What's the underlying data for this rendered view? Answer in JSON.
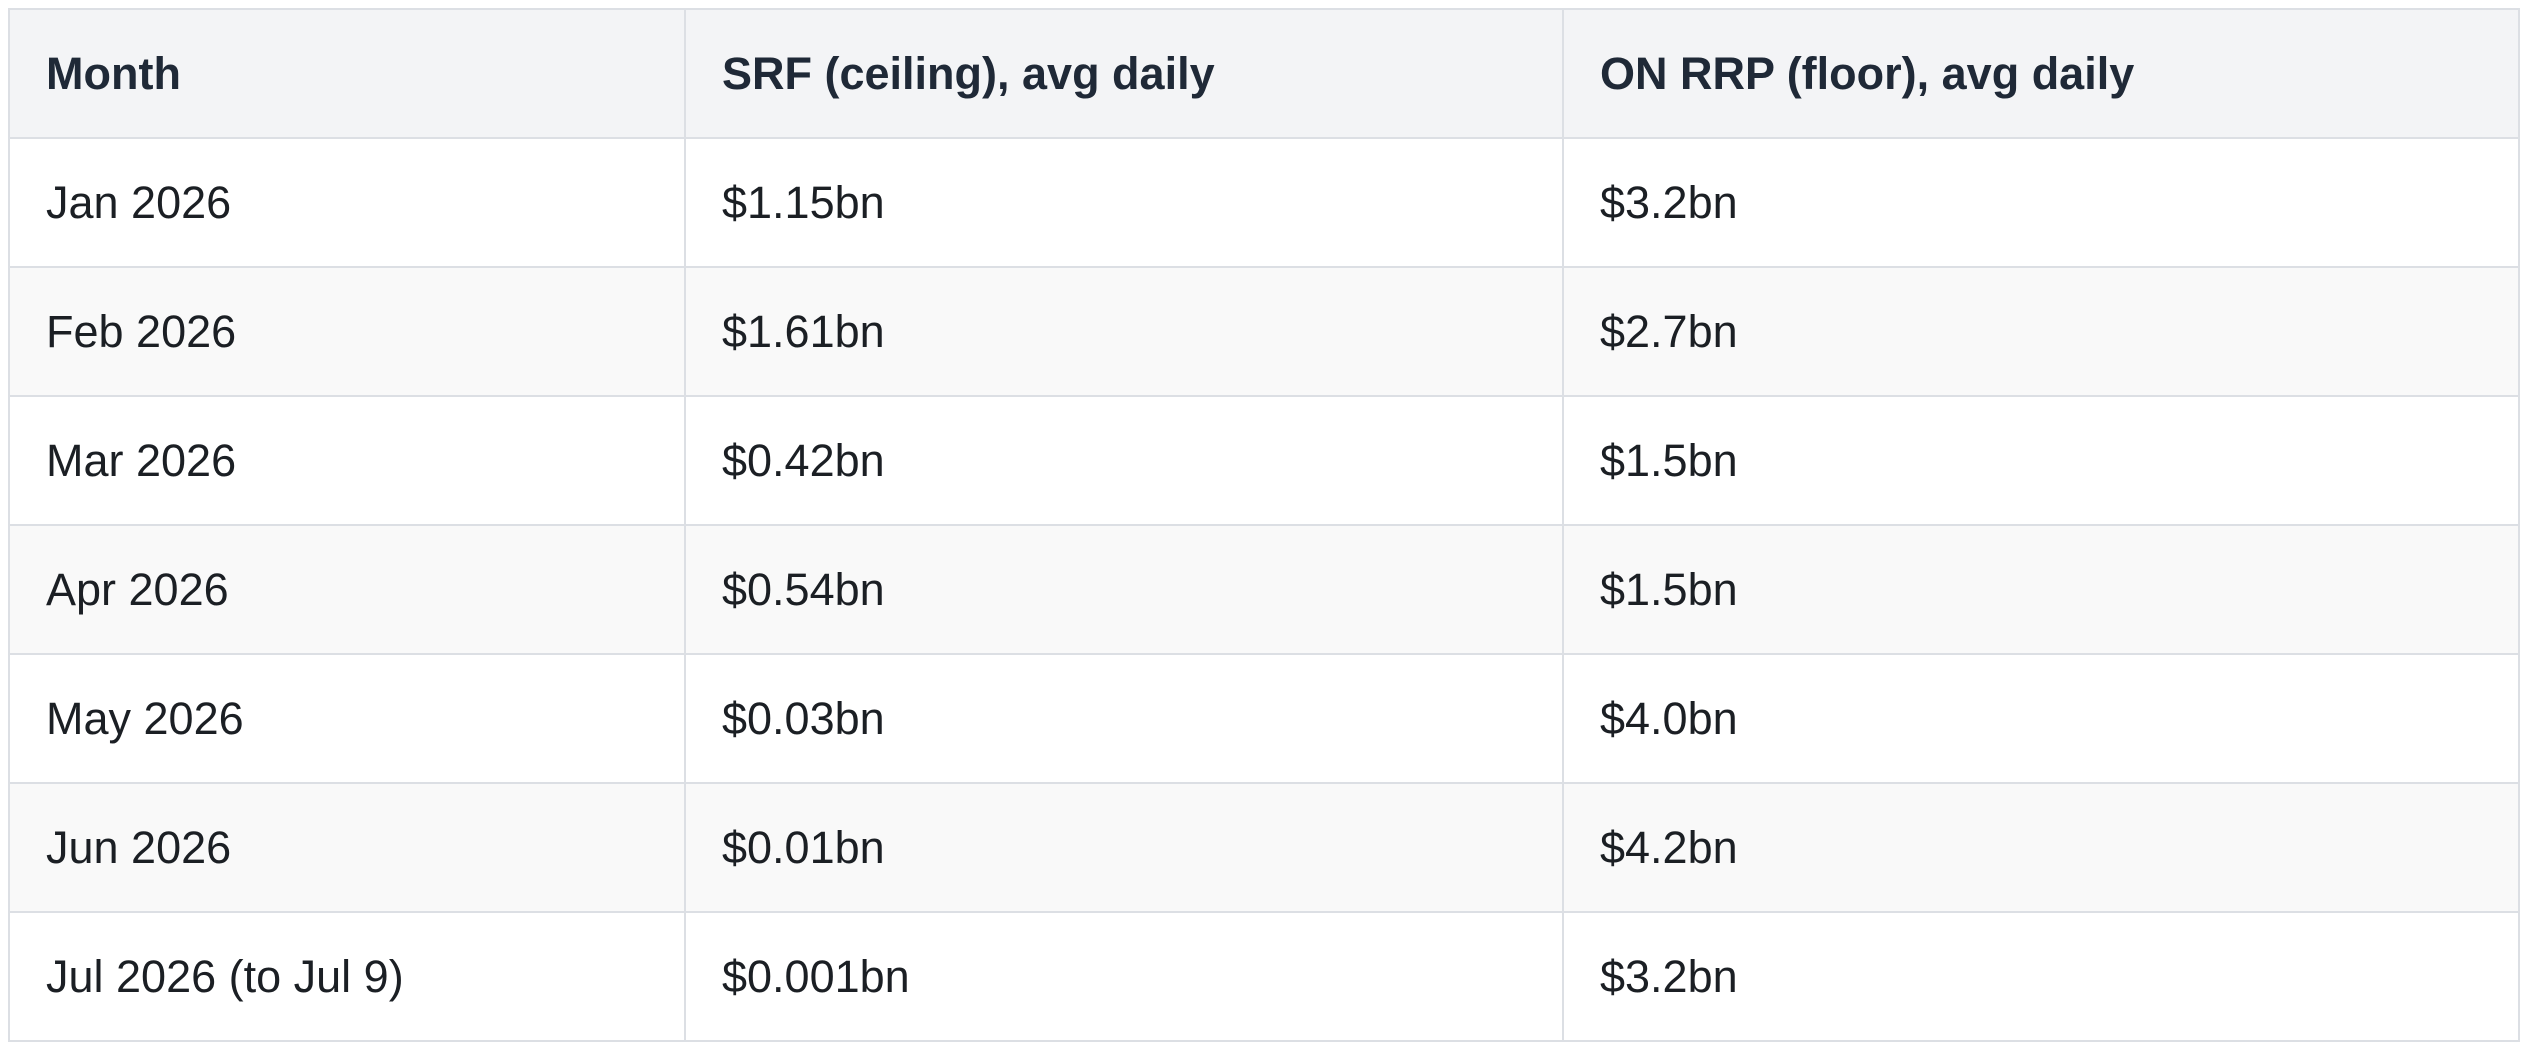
{
  "table": {
    "headers": [
      "Month",
      "SRF (ceiling), avg daily",
      "ON RRP (floor), avg daily"
    ],
    "rows": [
      [
        "Jan 2026",
        "$1.15bn",
        "$3.2bn"
      ],
      [
        "Feb 2026",
        "$1.61bn",
        "$2.7bn"
      ],
      [
        "Mar 2026",
        "$0.42bn",
        "$1.5bn"
      ],
      [
        "Apr 2026",
        "$0.54bn",
        "$1.5bn"
      ],
      [
        "May 2026",
        "$0.03bn",
        "$4.0bn"
      ],
      [
        "Jun 2026",
        "$0.01bn",
        "$4.2bn"
      ],
      [
        "Jul 2026 (to Jul 9)",
        "$0.001bn",
        "$3.2bn"
      ]
    ]
  },
  "colors": {
    "header_bg": "#f3f4f6",
    "border": "#dcdfe4",
    "row_alt_bg": "#f9f9f9",
    "text": "#1b1f24"
  }
}
